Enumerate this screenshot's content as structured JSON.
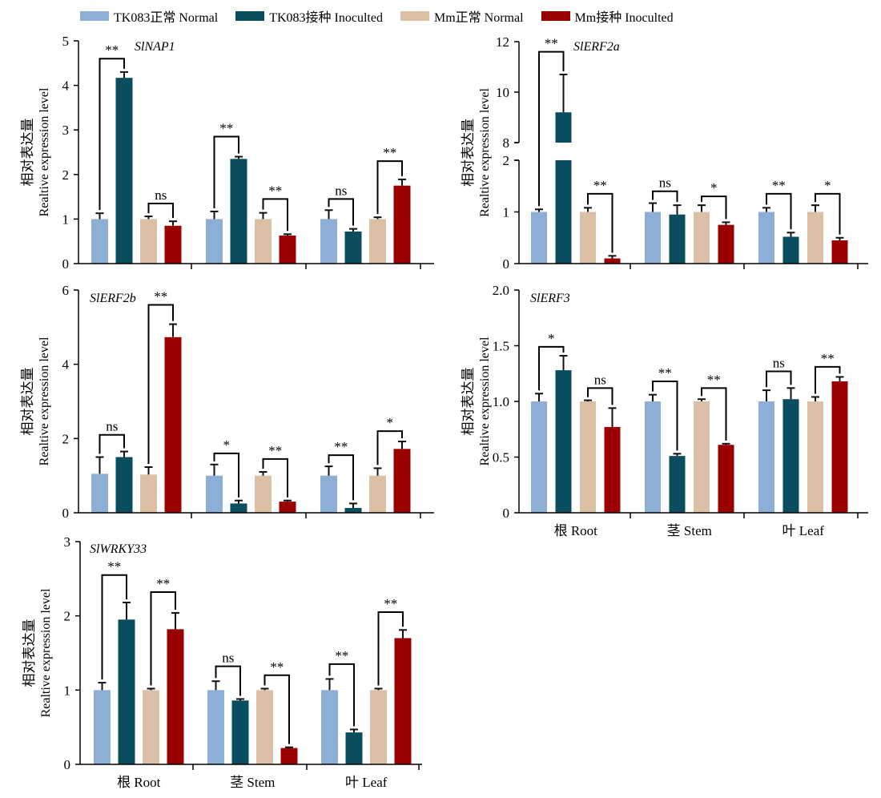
{
  "legend": [
    {
      "label": "TK083正常 Normal",
      "color": "#8eafd5"
    },
    {
      "label": "TK083接种 Inoculted",
      "color": "#0a4d5f"
    },
    {
      "label": "Mm正常 Normal",
      "color": "#dcc0a6"
    },
    {
      "label": "Mm接种 Inoculted",
      "color": "#9b0000"
    }
  ],
  "colors": [
    "#8eafd5",
    "#0a4d5f",
    "#dcc0a6",
    "#9b0000"
  ],
  "ylabel_cn": "相对表达量",
  "ylabel_en": "Realtive expression level",
  "chart_data": [
    {
      "type": "bar",
      "title": "SlNAP1",
      "categories": [
        "根 Root",
        "茎 Stem",
        "叶 Leaf"
      ],
      "show_category_labels": false,
      "ylim": [
        0,
        5
      ],
      "yticks": [
        "0",
        "1",
        "2",
        "3",
        "4",
        "5"
      ],
      "series": [
        {
          "name": "TK083正常 Normal",
          "values": [
            1.0,
            1.0,
            1.0
          ],
          "errors": [
            0.13,
            0.17,
            0.2
          ]
        },
        {
          "name": "TK083接种 Inoculted",
          "values": [
            4.17,
            2.35,
            0.72
          ],
          "errors": [
            0.13,
            0.05,
            0.06
          ]
        },
        {
          "name": "Mm正常 Normal",
          "values": [
            1.0,
            1.0,
            1.0
          ],
          "errors": [
            0.06,
            0.14,
            0.04
          ]
        },
        {
          "name": "Mm接种 Inoculted",
          "values": [
            0.85,
            0.63,
            1.75
          ],
          "errors": [
            0.1,
            0.03,
            0.14
          ]
        }
      ],
      "comparisons": [
        {
          "category": 0,
          "pair": "TK083",
          "label": "**",
          "y": 4.6
        },
        {
          "category": 0,
          "pair": "Mm",
          "label": "ns",
          "y": 1.35
        },
        {
          "category": 1,
          "pair": "TK083",
          "label": "**",
          "y": 2.85
        },
        {
          "category": 1,
          "pair": "Mm",
          "label": "**",
          "y": 1.45
        },
        {
          "category": 2,
          "pair": "TK083",
          "label": "ns",
          "y": 1.45
        },
        {
          "category": 2,
          "pair": "Mm",
          "label": "**",
          "y": 2.3
        }
      ]
    },
    {
      "type": "bar",
      "title": "SlERF2a",
      "categories": [
        "根 Root",
        "茎 Stem",
        "叶 Leaf"
      ],
      "show_category_labels": false,
      "broken_axis": {
        "lower": [
          0,
          2
        ],
        "upper": [
          8,
          12
        ]
      },
      "yticks": [
        "0",
        "1",
        "2",
        "8",
        "10",
        "12"
      ],
      "series": [
        {
          "name": "TK083正常 Normal",
          "values": [
            1.0,
            1.0,
            1.0
          ],
          "errors": [
            0.05,
            0.17,
            0.08
          ]
        },
        {
          "name": "TK083接种 Inoculted",
          "values": [
            9.2,
            0.95,
            0.52
          ],
          "errors": [
            1.5,
            0.18,
            0.08
          ]
        },
        {
          "name": "Mm正常 Normal",
          "values": [
            1.0,
            1.0,
            1.0
          ],
          "errors": [
            0.08,
            0.13,
            0.13
          ]
        },
        {
          "name": "Mm接种 Inoculted",
          "values": [
            0.1,
            0.75,
            0.45
          ],
          "errors": [
            0.05,
            0.05,
            0.05
          ]
        }
      ],
      "comparisons": [
        {
          "category": 0,
          "pair": "TK083",
          "label": "**",
          "y": 11.6
        },
        {
          "category": 0,
          "pair": "Mm",
          "label": "**",
          "y": 1.35
        },
        {
          "category": 1,
          "pair": "TK083",
          "label": "ns",
          "y": 1.4
        },
        {
          "category": 1,
          "pair": "Mm",
          "label": "*",
          "y": 1.3
        },
        {
          "category": 2,
          "pair": "TK083",
          "label": "**",
          "y": 1.35
        },
        {
          "category": 2,
          "pair": "Mm",
          "label": "*",
          "y": 1.35
        }
      ]
    },
    {
      "type": "bar",
      "title": "SlERF2b",
      "categories": [
        "根 Root",
        "茎 Stem",
        "叶 Leaf"
      ],
      "show_category_labels": false,
      "ylim": [
        0,
        6
      ],
      "yticks": [
        "0",
        "2",
        "4",
        "6"
      ],
      "series": [
        {
          "name": "TK083正常 Normal",
          "values": [
            1.05,
            1.0,
            1.0
          ],
          "errors": [
            0.45,
            0.3,
            0.25
          ]
        },
        {
          "name": "TK083接种 Inoculted",
          "values": [
            1.5,
            0.25,
            0.13
          ],
          "errors": [
            0.15,
            0.08,
            0.12
          ]
        },
        {
          "name": "Mm正常 Normal",
          "values": [
            1.03,
            1.0,
            1.0
          ],
          "errors": [
            0.2,
            0.1,
            0.2
          ]
        },
        {
          "name": "Mm接种 Inoculted",
          "values": [
            4.73,
            0.3,
            1.72
          ],
          "errors": [
            0.35,
            0.03,
            0.2
          ]
        }
      ],
      "comparisons": [
        {
          "category": 0,
          "pair": "TK083",
          "label": "ns",
          "y": 2.1
        },
        {
          "category": 0,
          "pair": "Mm",
          "label": "**",
          "y": 5.6
        },
        {
          "category": 1,
          "pair": "TK083",
          "label": "*",
          "y": 1.6
        },
        {
          "category": 1,
          "pair": "Mm",
          "label": "**",
          "y": 1.45
        },
        {
          "category": 2,
          "pair": "TK083",
          "label": "**",
          "y": 1.55
        },
        {
          "category": 2,
          "pair": "Mm",
          "label": "*",
          "y": 2.2
        }
      ]
    },
    {
      "type": "bar",
      "title": "SlERF3",
      "categories": [
        "根 Root",
        "茎 Stem",
        "叶 Leaf"
      ],
      "show_category_labels": true,
      "ylim": [
        0,
        2
      ],
      "yticks": [
        "0",
        "0.5",
        "1.0",
        "1.5",
        "2.0"
      ],
      "series": [
        {
          "name": "TK083正常 Normal",
          "values": [
            1.0,
            1.0,
            1.0
          ],
          "errors": [
            0.07,
            0.06,
            0.1
          ]
        },
        {
          "name": "TK083接种 Inoculted",
          "values": [
            1.28,
            0.51,
            1.02
          ],
          "errors": [
            0.13,
            0.02,
            0.1
          ]
        },
        {
          "name": "Mm正常 Normal",
          "values": [
            1.0,
            1.0,
            1.0
          ],
          "errors": [
            0.01,
            0.02,
            0.04
          ]
        },
        {
          "name": "Mm接种 Inoculted",
          "values": [
            0.77,
            0.61,
            1.18
          ],
          "errors": [
            0.17,
            0.01,
            0.04
          ]
        }
      ],
      "comparisons": [
        {
          "category": 0,
          "pair": "TK083",
          "label": "*",
          "y": 1.49
        },
        {
          "category": 0,
          "pair": "Mm",
          "label": "ns",
          "y": 1.12
        },
        {
          "category": 1,
          "pair": "TK083",
          "label": "**",
          "y": 1.18
        },
        {
          "category": 1,
          "pair": "Mm",
          "label": "**",
          "y": 1.12
        },
        {
          "category": 2,
          "pair": "TK083",
          "label": "ns",
          "y": 1.27
        },
        {
          "category": 2,
          "pair": "Mm",
          "label": "**",
          "y": 1.31
        }
      ]
    },
    {
      "type": "bar",
      "title": "SlWRKY33",
      "categories": [
        "根 Root",
        "茎 Stem",
        "叶 Leaf"
      ],
      "show_category_labels": true,
      "ylim": [
        0,
        3
      ],
      "yticks": [
        "0",
        "1",
        "2",
        "3"
      ],
      "series": [
        {
          "name": "TK083正常 Normal",
          "values": [
            1.0,
            1.0,
            1.0
          ],
          "errors": [
            0.1,
            0.12,
            0.15
          ]
        },
        {
          "name": "TK083接种 Inoculted",
          "values": [
            1.95,
            0.86,
            0.43
          ],
          "errors": [
            0.23,
            0.02,
            0.04
          ]
        },
        {
          "name": "Mm正常 Normal",
          "values": [
            1.0,
            1.0,
            1.0
          ],
          "errors": [
            0.02,
            0.02,
            0.02
          ]
        },
        {
          "name": "Mm接种 Inoculted",
          "values": [
            1.82,
            0.22,
            1.7
          ],
          "errors": [
            0.22,
            0.01,
            0.11
          ]
        }
      ],
      "comparisons": [
        {
          "category": 0,
          "pair": "TK083",
          "label": "**",
          "y": 2.55
        },
        {
          "category": 0,
          "pair": "Mm",
          "label": "**",
          "y": 2.32
        },
        {
          "category": 1,
          "pair": "TK083",
          "label": "ns",
          "y": 1.32
        },
        {
          "category": 1,
          "pair": "Mm",
          "label": "**",
          "y": 1.2
        },
        {
          "category": 2,
          "pair": "TK083",
          "label": "**",
          "y": 1.35
        },
        {
          "category": 2,
          "pair": "Mm",
          "label": "**",
          "y": 2.05
        }
      ]
    }
  ]
}
